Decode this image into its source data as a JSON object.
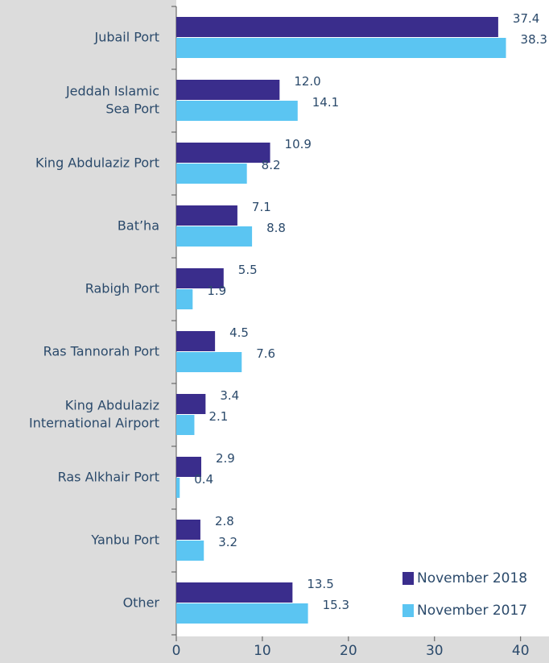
{
  "chart_data": {
    "type": "bar",
    "orientation": "horizontal",
    "categories": [
      [
        "Jubail Port"
      ],
      [
        "Jeddah Islamic",
        "Sea Port"
      ],
      [
        "King Abdulaziz Port"
      ],
      [
        "Bat’ha"
      ],
      [
        "Rabigh Port"
      ],
      [
        "Ras Tannorah Port"
      ],
      [
        "King Abdulaziz",
        "International Airport"
      ],
      [
        "Ras Alkhair Port"
      ],
      [
        "Yanbu Port"
      ],
      [
        "Other"
      ]
    ],
    "series": [
      {
        "name": "November 2018",
        "color": "#3a2d8c",
        "values": [
          37.4,
          12.0,
          10.9,
          7.1,
          5.5,
          4.5,
          3.4,
          2.9,
          2.8,
          13.5
        ],
        "value_labels": [
          "37.4",
          "12.0",
          "10.9",
          "7.1",
          "5.5",
          "4.5",
          "3.4",
          "2.9",
          "2.8",
          "13.5"
        ]
      },
      {
        "name": "November 2017",
        "color": "#5bc5f2",
        "values": [
          38.3,
          14.1,
          8.2,
          8.8,
          1.9,
          7.6,
          2.1,
          0.4,
          3.2,
          15.3
        ],
        "value_labels": [
          "38.3",
          "14.1",
          "8.2",
          "8.8",
          "1.9",
          "7.6",
          "2.1",
          "0.4",
          "3.2",
          "15.3"
        ]
      }
    ],
    "xlim": [
      0,
      43.3
    ],
    "xticks": [
      0,
      10,
      20,
      30,
      40
    ],
    "legend": "lower right"
  }
}
